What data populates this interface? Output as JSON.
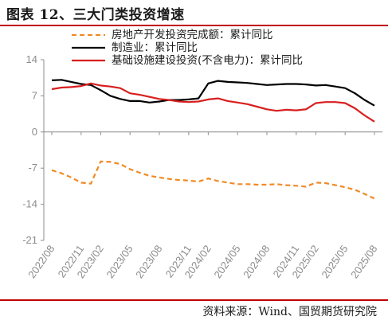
{
  "header": {
    "title": "图表 12、三大门类投资增速"
  },
  "footer": {
    "source": "资料来源：Wind、国贸期货研究院"
  },
  "chart_data": {
    "type": "line",
    "title": "",
    "xlabel": "",
    "ylabel": "",
    "ylim": [
      -21,
      14
    ],
    "yticks": [
      14,
      7,
      0,
      -7,
      -14,
      -21
    ],
    "grid": false,
    "legend_position": "top",
    "x": [
      "2022/08",
      "2022/09",
      "2022/10",
      "2022/11",
      "2022/12",
      "2023/02",
      "2023/03",
      "2023/04",
      "2023/05",
      "2023/06",
      "2023/07",
      "2023/08",
      "2023/09",
      "2023/10",
      "2023/11",
      "2023/12",
      "2024/02",
      "2024/03",
      "2024/04",
      "2024/05",
      "2024/06",
      "2024/07",
      "2024/08",
      "2024/09",
      "2024/10",
      "2024/11",
      "2024/12",
      "2025/02",
      "2025/03",
      "2025/04",
      "2025/05",
      "2025/06",
      "2025/07",
      "2025/08"
    ],
    "xticks": [
      "2022/08",
      "2022/11",
      "2023/02",
      "2023/05",
      "2023/08",
      "2023/11",
      "2024/02",
      "2024/05",
      "2024/08",
      "2024/11",
      "2025/02",
      "2025/05",
      "2025/08"
    ],
    "series": [
      {
        "name": "房地产开发投资完成额：累计同比",
        "color": "#f08a24",
        "dash": true,
        "values": [
          -7.4,
          -8.0,
          -8.8,
          -9.8,
          -10.0,
          -5.7,
          -5.8,
          -6.2,
          -7.2,
          -7.9,
          -8.5,
          -8.8,
          -9.1,
          -9.3,
          -9.4,
          -9.6,
          -9.0,
          -9.5,
          -9.8,
          -10.1,
          -10.1,
          -10.2,
          -10.2,
          -10.1,
          -10.3,
          -10.4,
          -10.6,
          -9.8,
          -9.9,
          -10.3,
          -10.7,
          -11.2,
          -12.0,
          -12.9
        ]
      },
      {
        "name": "制造业：累计同比",
        "color": "#000000",
        "dash": false,
        "values": [
          10.0,
          10.1,
          9.7,
          9.3,
          9.1,
          8.1,
          7.0,
          6.4,
          6.0,
          6.0,
          5.7,
          5.9,
          6.2,
          6.2,
          6.3,
          6.5,
          9.4,
          9.9,
          9.7,
          9.6,
          9.5,
          9.3,
          9.1,
          9.2,
          9.3,
          9.3,
          9.2,
          9.0,
          9.1,
          8.8,
          8.5,
          7.5,
          6.2,
          5.1
        ]
      },
      {
        "name": "基础设施建设投资(不含电力)：累计同比",
        "color": "#d81e1e",
        "dash": false,
        "values": [
          8.3,
          8.6,
          8.7,
          8.9,
          9.4,
          9.0,
          8.8,
          8.5,
          7.5,
          7.2,
          6.8,
          6.4,
          6.2,
          5.9,
          5.8,
          5.9,
          6.3,
          6.5,
          6.0,
          5.7,
          5.4,
          4.9,
          4.4,
          4.1,
          4.3,
          4.2,
          4.4,
          5.6,
          5.8,
          5.8,
          5.6,
          4.6,
          3.2,
          2.0
        ]
      }
    ]
  }
}
